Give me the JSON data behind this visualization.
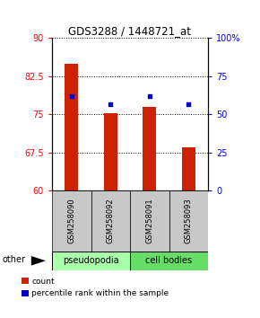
{
  "title": "GDS3288 / 1448721_at",
  "samples": [
    "GSM258090",
    "GSM258092",
    "GSM258091",
    "GSM258093"
  ],
  "bar_values": [
    85.0,
    75.2,
    76.5,
    68.5
  ],
  "dot_percentiles": [
    62,
    57,
    62,
    57
  ],
  "bar_color": "#cc2200",
  "dot_color": "#0000cc",
  "ylim_left": [
    60,
    90
  ],
  "ylim_right": [
    0,
    100
  ],
  "yticks_left": [
    60,
    67.5,
    75,
    82.5,
    90
  ],
  "yticks_right": [
    0,
    25,
    50,
    75,
    100
  ],
  "ytick_labels_left": [
    "60",
    "67.5",
    "75",
    "82.5",
    "90"
  ],
  "ytick_labels_right": [
    "0",
    "25",
    "50",
    "75",
    "100%"
  ],
  "pseudopodia_color": "#aaffaa",
  "cell_bodies_color": "#66dd66",
  "legend_count_label": "count",
  "legend_pct_label": "percentile rank within the sample",
  "bar_width": 0.35
}
